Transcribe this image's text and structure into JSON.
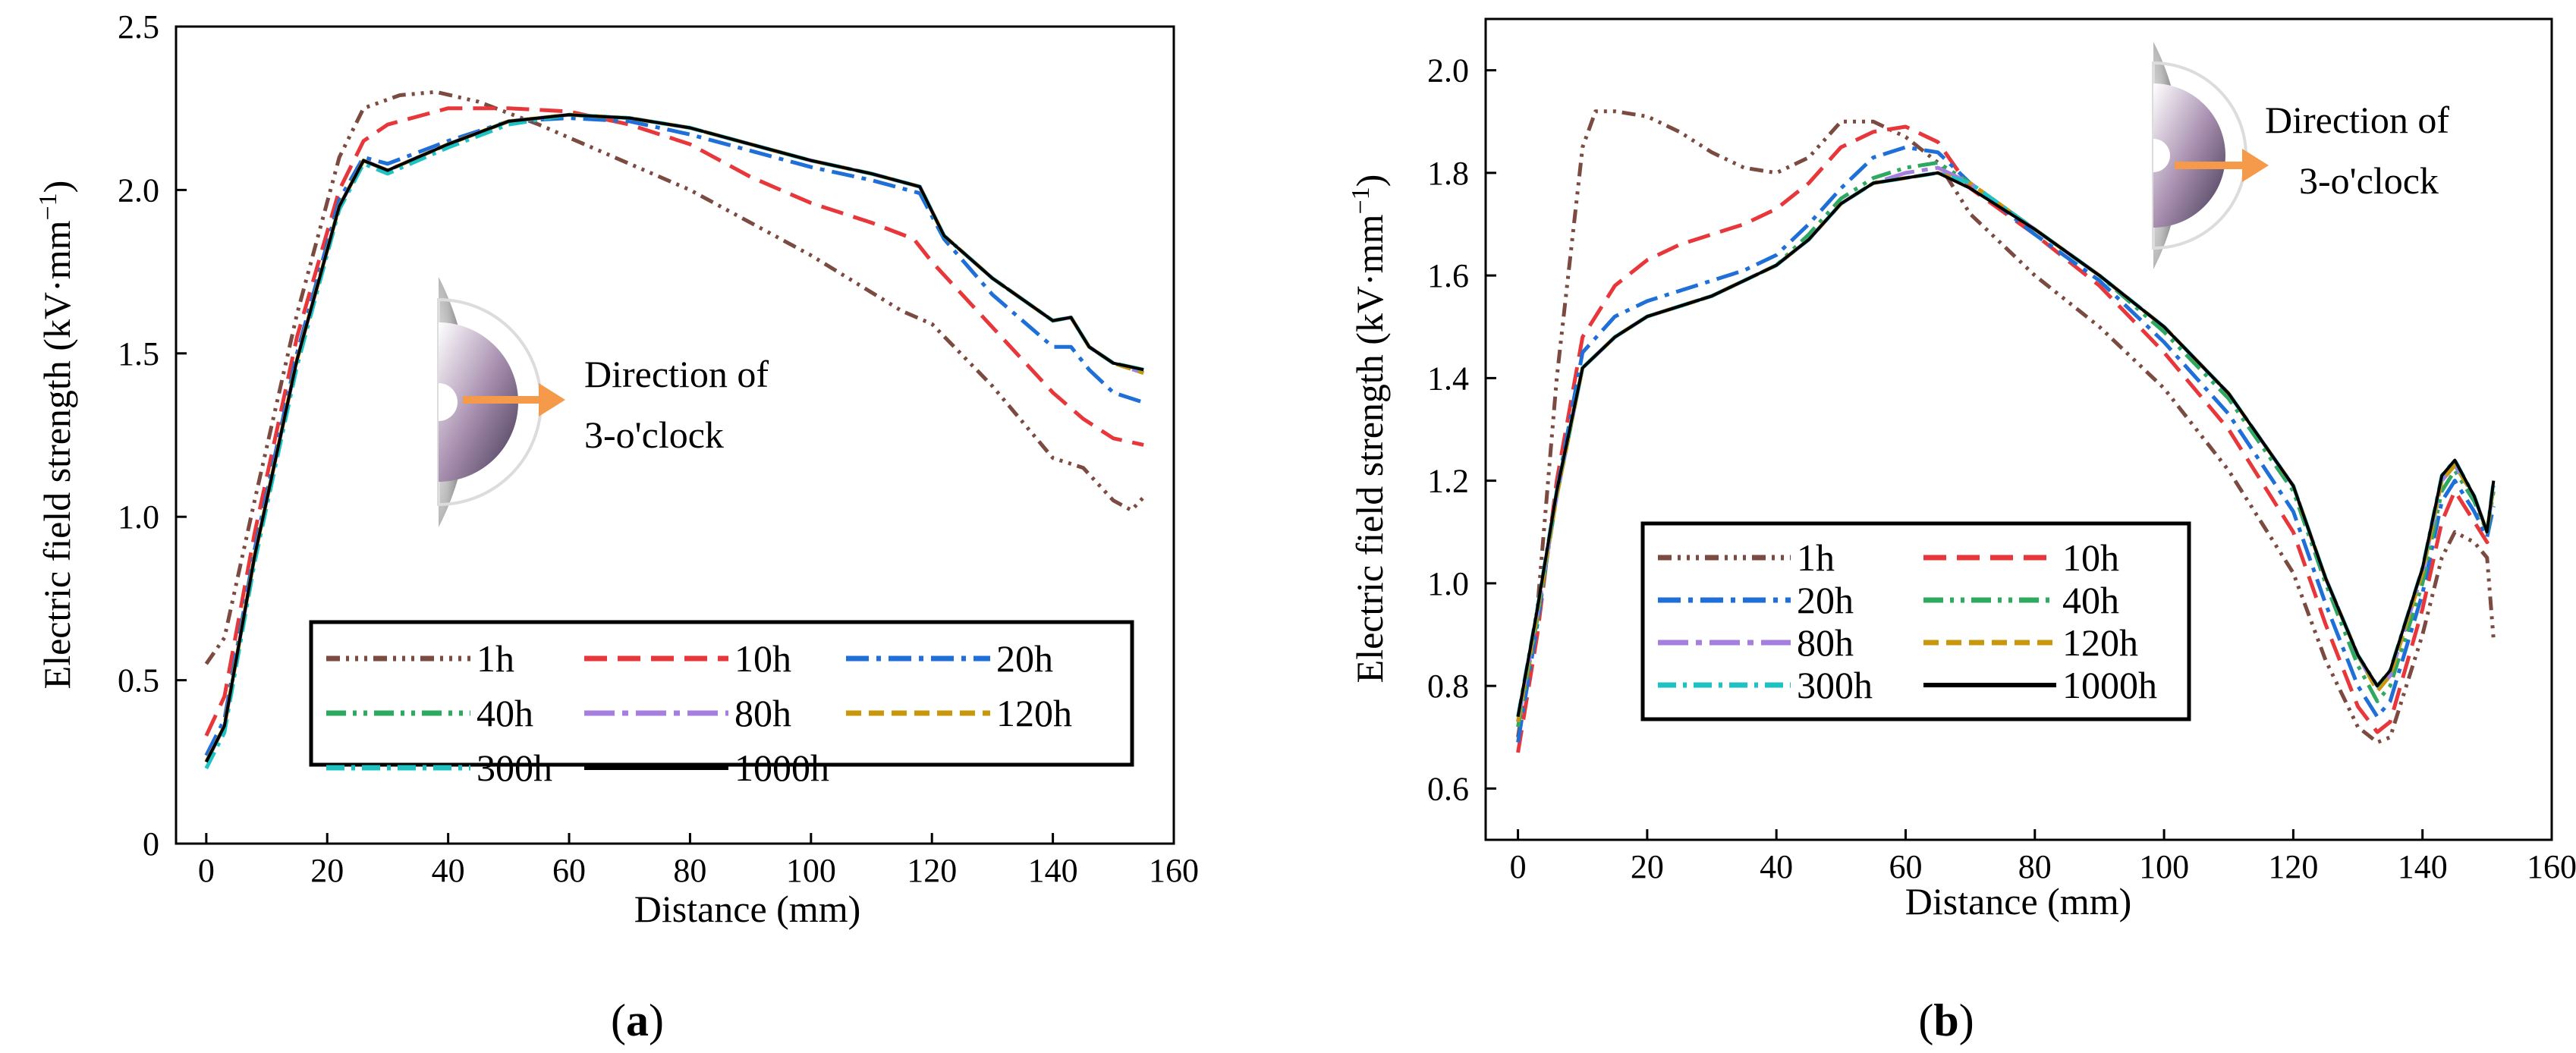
{
  "colors": {
    "1h": "#7b4a40",
    "10h": "#e8373a",
    "20h": "#1f6fd8",
    "40h": "#2fa860",
    "80h": "#a57fe0",
    "120h": "#c9970c",
    "300h": "#1fc2c2",
    "1000h": "#000000",
    "arrow": "#f59a4a"
  },
  "chart_data": [
    {
      "type": "line",
      "panel_label": "(a)",
      "panel_letter": "a",
      "xlabel": "Distance (mm)",
      "ylabel": "Electric field strength (kV·mm",
      "ylabel_sup": "−1",
      "ylabel_close": ")",
      "xlim": [
        -5,
        160
      ],
      "ylim": [
        0,
        2.5
      ],
      "xticks": [
        "0",
        "20",
        "40",
        "60",
        "80",
        "100",
        "120",
        "140",
        "160"
      ],
      "yticks": [
        "0",
        "0.5",
        "1.0",
        "1.5",
        "2.0",
        "2.5"
      ],
      "annotation": [
        "Direction of",
        "3-o'clock"
      ],
      "legend": [
        "1h",
        "10h",
        "20h",
        "40h",
        "80h",
        "120h",
        "300h",
        "1000h"
      ],
      "series": [
        {
          "name": "1h",
          "x": [
            0,
            3,
            8,
            15,
            22,
            26,
            32,
            38,
            45,
            55,
            65,
            80,
            100,
            115,
            120,
            130,
            140,
            145,
            150,
            153,
            155
          ],
          "y": [
            0.55,
            0.63,
            1.05,
            1.62,
            2.1,
            2.25,
            2.29,
            2.3,
            2.27,
            2.2,
            2.12,
            2.0,
            1.8,
            1.63,
            1.59,
            1.4,
            1.18,
            1.15,
            1.05,
            1.02,
            1.06
          ]
        },
        {
          "name": "10h",
          "x": [
            0,
            3,
            8,
            15,
            22,
            26,
            30,
            40,
            50,
            60,
            70,
            80,
            90,
            100,
            110,
            117,
            120,
            130,
            140,
            145,
            150,
            155
          ],
          "y": [
            0.33,
            0.45,
            0.95,
            1.55,
            2.0,
            2.15,
            2.2,
            2.25,
            2.25,
            2.24,
            2.2,
            2.14,
            2.04,
            1.96,
            1.9,
            1.85,
            1.78,
            1.58,
            1.38,
            1.3,
            1.24,
            1.22
          ]
        },
        {
          "name": "20h",
          "x": [
            0,
            3,
            8,
            15,
            22,
            26,
            30,
            40,
            50,
            60,
            70,
            80,
            90,
            100,
            110,
            118,
            122,
            130,
            140,
            143,
            146,
            150,
            155
          ],
          "y": [
            0.27,
            0.38,
            0.9,
            1.5,
            1.97,
            2.1,
            2.08,
            2.15,
            2.21,
            2.22,
            2.21,
            2.17,
            2.12,
            2.07,
            2.03,
            1.99,
            1.85,
            1.68,
            1.52,
            1.52,
            1.45,
            1.38,
            1.35
          ]
        },
        {
          "name": "40h",
          "x": [
            0,
            3,
            8,
            15,
            22,
            26,
            30,
            40,
            50,
            60,
            70,
            80,
            90,
            100,
            110,
            118,
            122,
            130,
            140,
            143,
            146,
            150,
            155
          ],
          "y": [
            0.25,
            0.36,
            0.88,
            1.48,
            1.95,
            2.09,
            2.06,
            2.14,
            2.21,
            2.23,
            2.22,
            2.19,
            2.14,
            2.09,
            2.05,
            2.01,
            1.86,
            1.73,
            1.6,
            1.61,
            1.52,
            1.47,
            1.45
          ]
        },
        {
          "name": "80h",
          "x": [
            0,
            3,
            8,
            15,
            22,
            26,
            30,
            40,
            50,
            60,
            70,
            80,
            90,
            100,
            110,
            118,
            122,
            130,
            140,
            143,
            146,
            150,
            155
          ],
          "y": [
            0.25,
            0.36,
            0.88,
            1.48,
            1.95,
            2.09,
            2.06,
            2.14,
            2.21,
            2.23,
            2.22,
            2.19,
            2.14,
            2.09,
            2.05,
            2.01,
            1.86,
            1.73,
            1.6,
            1.61,
            1.52,
            1.47,
            1.44
          ]
        },
        {
          "name": "120h",
          "x": [
            0,
            3,
            8,
            15,
            22,
            26,
            30,
            40,
            50,
            60,
            70,
            80,
            90,
            100,
            110,
            118,
            122,
            130,
            140,
            143,
            146,
            150,
            155
          ],
          "y": [
            0.25,
            0.36,
            0.88,
            1.48,
            1.95,
            2.09,
            2.06,
            2.14,
            2.21,
            2.23,
            2.22,
            2.19,
            2.14,
            2.09,
            2.05,
            2.01,
            1.86,
            1.73,
            1.6,
            1.61,
            1.52,
            1.47,
            1.44
          ]
        },
        {
          "name": "300h",
          "x": [
            0,
            3,
            8,
            15,
            22,
            26,
            30,
            40,
            50,
            60,
            70,
            80,
            90,
            100,
            110,
            118,
            122,
            130,
            140,
            143,
            146,
            150,
            155
          ],
          "y": [
            0.23,
            0.34,
            0.86,
            1.46,
            1.94,
            2.08,
            2.05,
            2.13,
            2.2,
            2.23,
            2.22,
            2.19,
            2.14,
            2.09,
            2.05,
            2.01,
            1.86,
            1.73,
            1.6,
            1.61,
            1.52,
            1.47,
            1.45
          ]
        },
        {
          "name": "1000h",
          "x": [
            0,
            3,
            8,
            15,
            22,
            26,
            30,
            40,
            50,
            60,
            70,
            80,
            90,
            100,
            110,
            118,
            122,
            130,
            140,
            143,
            146,
            150,
            155
          ],
          "y": [
            0.25,
            0.36,
            0.88,
            1.48,
            1.95,
            2.09,
            2.06,
            2.14,
            2.21,
            2.23,
            2.22,
            2.19,
            2.14,
            2.09,
            2.05,
            2.01,
            1.86,
            1.73,
            1.6,
            1.61,
            1.52,
            1.47,
            1.45
          ]
        }
      ]
    },
    {
      "type": "line",
      "panel_label": "(b)",
      "panel_letter": "b",
      "xlabel": "Distance (mm)",
      "ylabel": "Electric field strength (kV·mm",
      "ylabel_sup": "−1",
      "ylabel_close": ")",
      "xlim": [
        -5,
        160
      ],
      "ylim": [
        0.5,
        2.1
      ],
      "xticks": [
        "0",
        "20",
        "40",
        "60",
        "80",
        "100",
        "120",
        "140",
        "160"
      ],
      "yticks": [
        "0.6",
        "0.8",
        "1.0",
        "1.2",
        "1.4",
        "1.6",
        "1.8",
        "2.0"
      ],
      "annotation": [
        "Direction of",
        "3-o'clock"
      ],
      "legend": [
        "1h",
        "10h",
        "20h",
        "40h",
        "80h",
        "120h",
        "300h",
        "1000h"
      ],
      "series": [
        {
          "name": "1h",
          "x": [
            0,
            3,
            6,
            10,
            12,
            15,
            20,
            25,
            30,
            35,
            40,
            45,
            50,
            55,
            60,
            65,
            70,
            80,
            90,
            100,
            110,
            120,
            125,
            130,
            133,
            135,
            140,
            143,
            145,
            148,
            150,
            151
          ],
          "y": [
            0.7,
            0.95,
            1.4,
            1.85,
            1.92,
            1.92,
            1.91,
            1.88,
            1.84,
            1.81,
            1.8,
            1.83,
            1.9,
            1.9,
            1.87,
            1.82,
            1.72,
            1.6,
            1.5,
            1.38,
            1.22,
            1.02,
            0.85,
            0.72,
            0.69,
            0.7,
            0.9,
            1.05,
            1.1,
            1.08,
            1.05,
            0.89
          ]
        },
        {
          "name": "10h",
          "x": [
            0,
            3,
            6,
            10,
            15,
            20,
            25,
            30,
            35,
            40,
            45,
            50,
            55,
            60,
            65,
            70,
            80,
            90,
            100,
            110,
            120,
            125,
            130,
            133,
            135,
            140,
            143,
            145,
            148,
            150,
            151
          ],
          "y": [
            0.67,
            0.9,
            1.2,
            1.48,
            1.58,
            1.63,
            1.66,
            1.68,
            1.7,
            1.73,
            1.78,
            1.85,
            1.88,
            1.89,
            1.86,
            1.77,
            1.68,
            1.58,
            1.45,
            1.3,
            1.1,
            0.92,
            0.76,
            0.71,
            0.73,
            0.95,
            1.12,
            1.18,
            1.12,
            1.08,
            1.1
          ]
        },
        {
          "name": "20h",
          "x": [
            0,
            3,
            6,
            10,
            15,
            20,
            25,
            30,
            35,
            40,
            45,
            50,
            55,
            60,
            65,
            70,
            80,
            90,
            100,
            110,
            120,
            125,
            130,
            133,
            135,
            140,
            143,
            145,
            148,
            150,
            151
          ],
          "y": [
            0.69,
            0.92,
            1.18,
            1.45,
            1.52,
            1.55,
            1.57,
            1.59,
            1.61,
            1.64,
            1.7,
            1.77,
            1.83,
            1.85,
            1.84,
            1.78,
            1.68,
            1.59,
            1.47,
            1.33,
            1.14,
            0.96,
            0.8,
            0.74,
            0.77,
            0.98,
            1.16,
            1.2,
            1.14,
            1.09,
            1.15
          ]
        },
        {
          "name": "40h",
          "x": [
            0,
            3,
            6,
            10,
            15,
            20,
            25,
            30,
            35,
            40,
            45,
            50,
            55,
            60,
            65,
            70,
            80,
            90,
            100,
            110,
            120,
            125,
            130,
            133,
            135,
            140,
            143,
            145,
            148,
            150,
            151
          ],
          "y": [
            0.72,
            0.93,
            1.17,
            1.42,
            1.48,
            1.52,
            1.54,
            1.56,
            1.59,
            1.62,
            1.68,
            1.75,
            1.79,
            1.81,
            1.82,
            1.78,
            1.69,
            1.6,
            1.49,
            1.36,
            1.18,
            1.0,
            0.84,
            0.77,
            0.8,
            1.0,
            1.18,
            1.22,
            1.16,
            1.1,
            1.18
          ]
        },
        {
          "name": "80h",
          "x": [
            0,
            3,
            6,
            10,
            15,
            20,
            25,
            30,
            35,
            40,
            45,
            50,
            55,
            60,
            65,
            70,
            80,
            90,
            100,
            110,
            120,
            125,
            130,
            133,
            135,
            140,
            143,
            145,
            148,
            150,
            151
          ],
          "y": [
            0.73,
            0.94,
            1.17,
            1.42,
            1.48,
            1.52,
            1.54,
            1.56,
            1.59,
            1.62,
            1.67,
            1.74,
            1.78,
            1.8,
            1.81,
            1.78,
            1.69,
            1.6,
            1.5,
            1.37,
            1.19,
            1.01,
            0.86,
            0.79,
            0.82,
            1.02,
            1.2,
            1.23,
            1.17,
            1.1,
            1.19
          ]
        },
        {
          "name": "120h",
          "x": [
            0,
            3,
            6,
            10,
            15,
            20,
            25,
            30,
            35,
            40,
            45,
            50,
            55,
            60,
            65,
            70,
            80,
            90,
            100,
            110,
            120,
            125,
            130,
            133,
            135,
            140,
            143,
            145,
            148,
            150,
            151
          ],
          "y": [
            0.73,
            0.94,
            1.17,
            1.42,
            1.48,
            1.52,
            1.54,
            1.56,
            1.59,
            1.62,
            1.67,
            1.74,
            1.78,
            1.79,
            1.8,
            1.78,
            1.69,
            1.6,
            1.5,
            1.37,
            1.19,
            1.01,
            0.86,
            0.79,
            0.82,
            1.02,
            1.2,
            1.23,
            1.17,
            1.1,
            1.19
          ]
        },
        {
          "name": "300h",
          "x": [
            0,
            3,
            6,
            10,
            15,
            20,
            25,
            30,
            35,
            40,
            45,
            50,
            55,
            60,
            65,
            70,
            80,
            90,
            100,
            110,
            120,
            125,
            130,
            133,
            135,
            140,
            143,
            145,
            148,
            150,
            151
          ],
          "y": [
            0.74,
            0.95,
            1.18,
            1.42,
            1.48,
            1.52,
            1.54,
            1.56,
            1.59,
            1.62,
            1.67,
            1.74,
            1.78,
            1.79,
            1.8,
            1.78,
            1.69,
            1.6,
            1.5,
            1.37,
            1.19,
            1.01,
            0.86,
            0.8,
            0.83,
            1.03,
            1.21,
            1.24,
            1.17,
            1.1,
            1.2
          ]
        },
        {
          "name": "1000h",
          "x": [
            0,
            3,
            6,
            10,
            15,
            20,
            25,
            30,
            35,
            40,
            45,
            50,
            55,
            60,
            65,
            70,
            80,
            90,
            100,
            110,
            120,
            125,
            130,
            133,
            135,
            140,
            143,
            145,
            148,
            150,
            151
          ],
          "y": [
            0.74,
            0.95,
            1.18,
            1.42,
            1.48,
            1.52,
            1.54,
            1.56,
            1.59,
            1.62,
            1.67,
            1.74,
            1.78,
            1.79,
            1.8,
            1.77,
            1.69,
            1.6,
            1.5,
            1.37,
            1.19,
            1.01,
            0.86,
            0.8,
            0.83,
            1.03,
            1.21,
            1.24,
            1.17,
            1.1,
            1.2
          ]
        }
      ]
    }
  ]
}
